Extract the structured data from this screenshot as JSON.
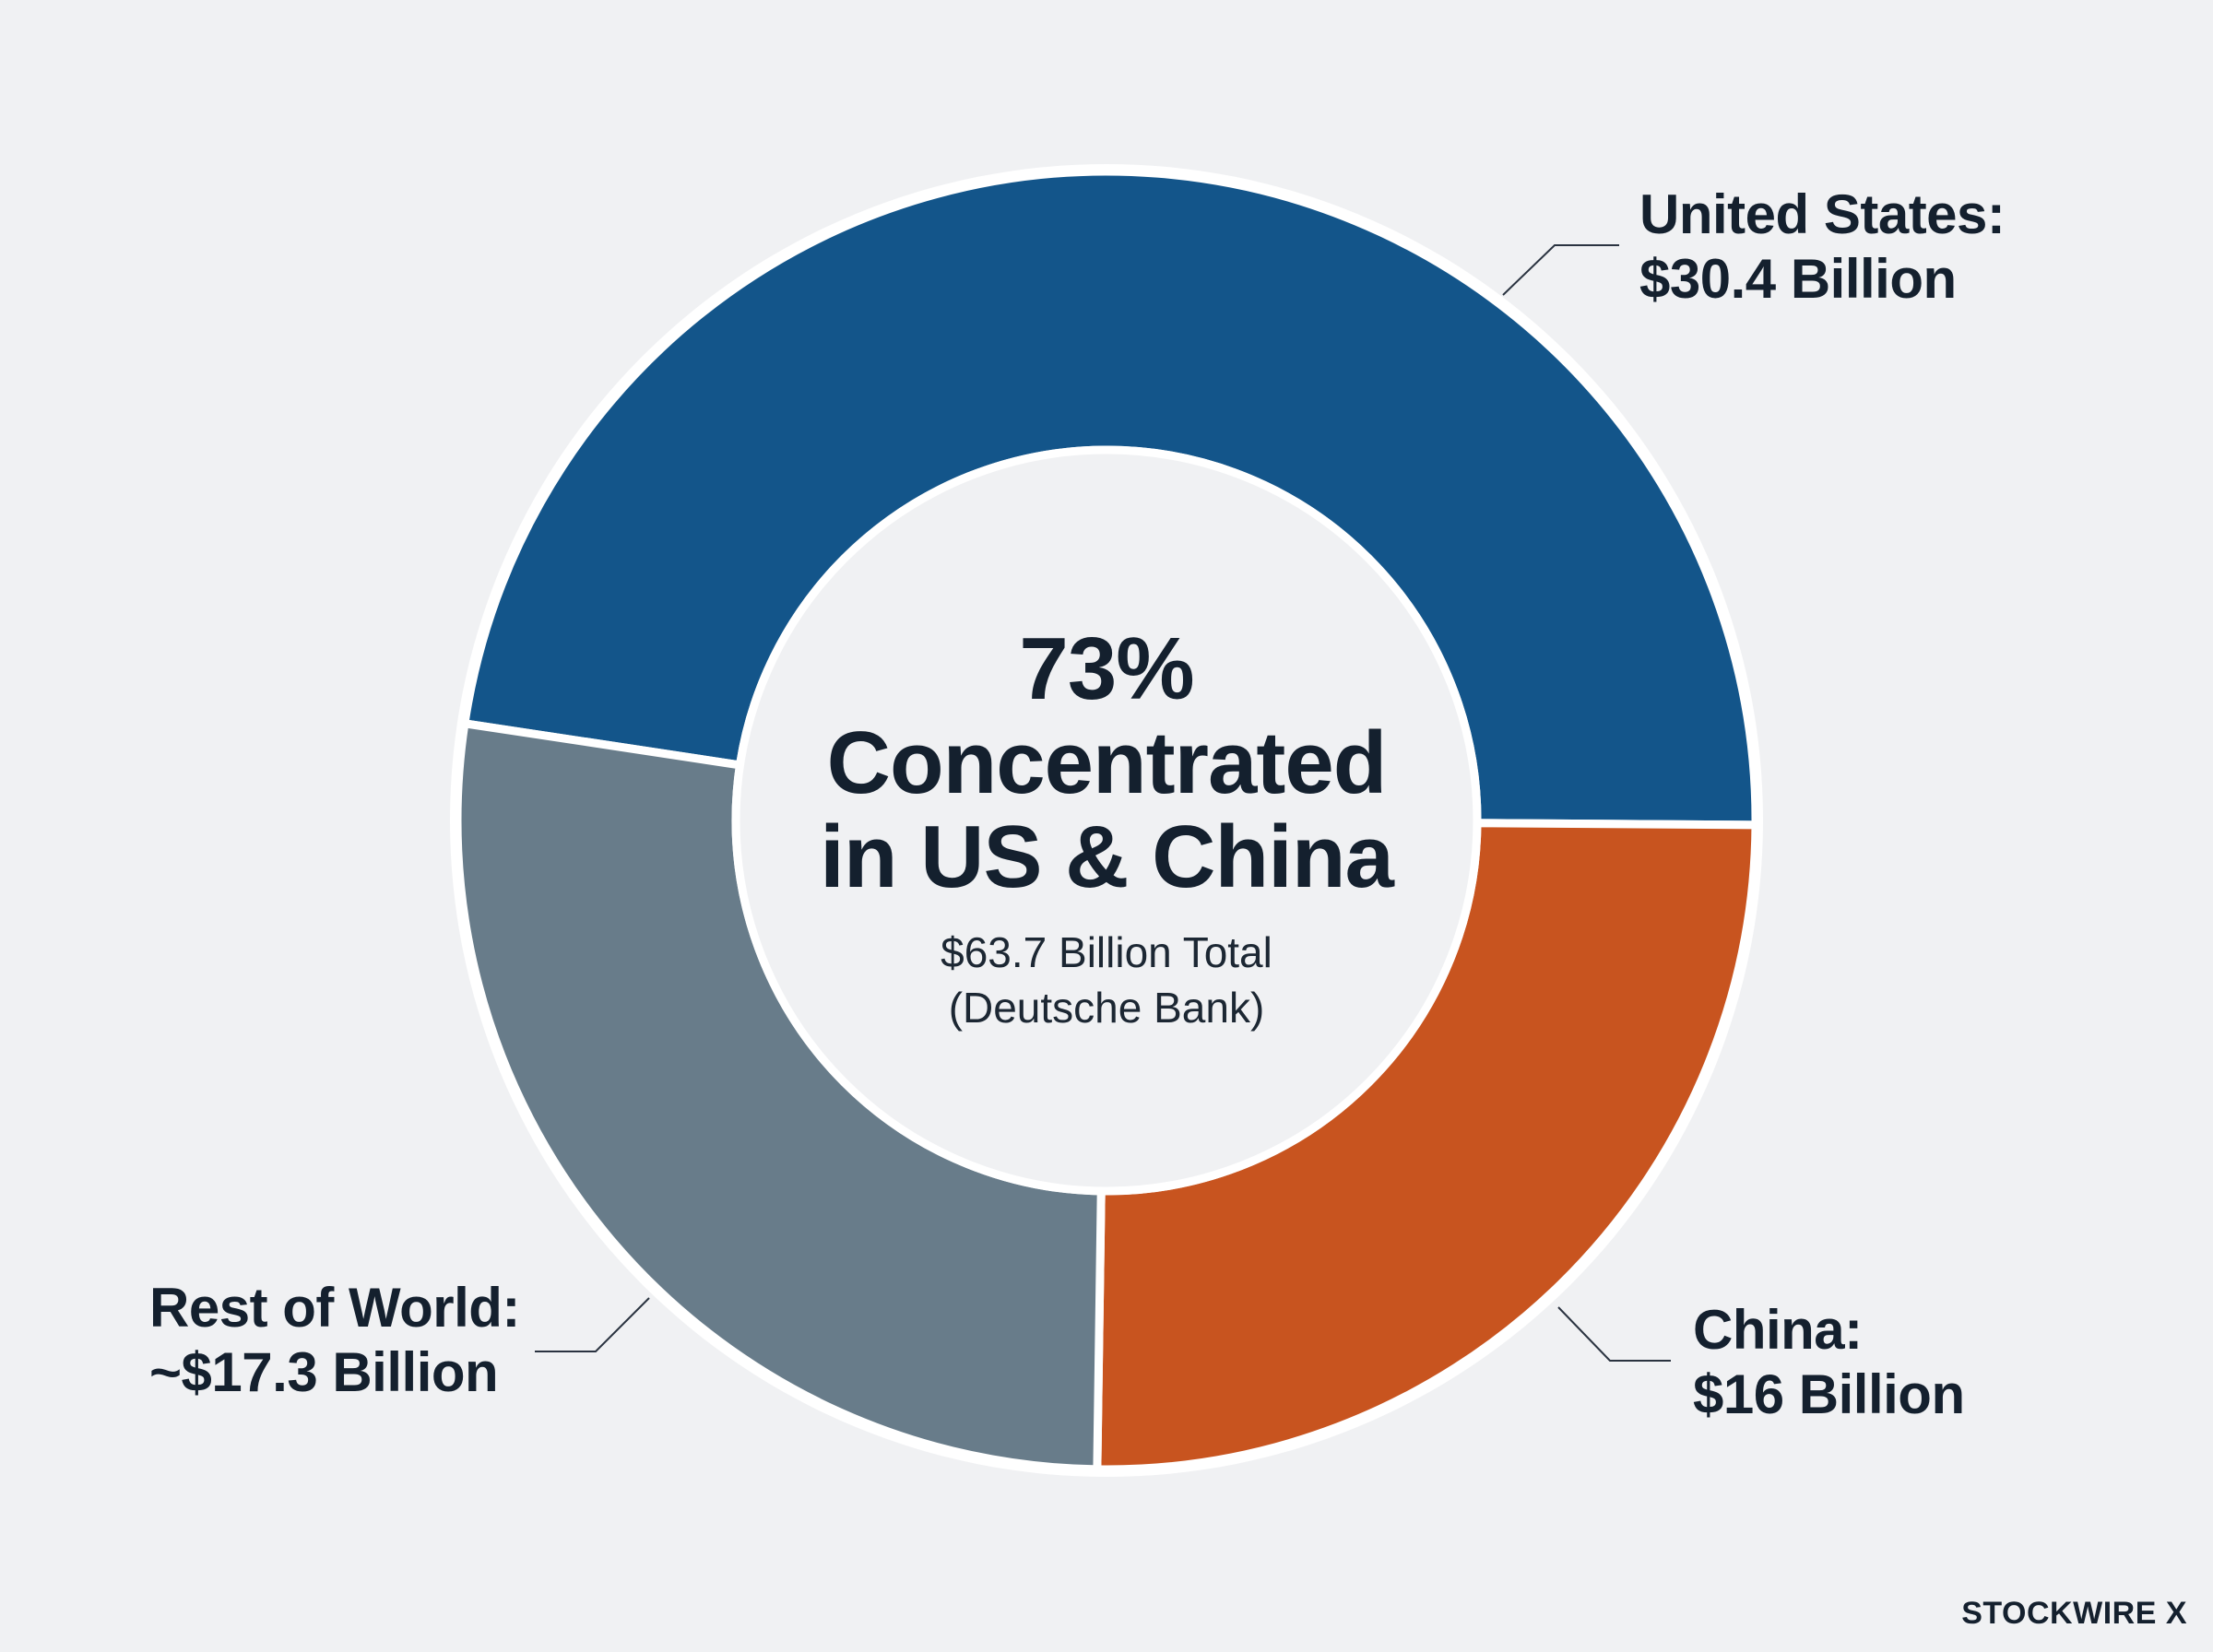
{
  "chart_data": {
    "type": "pie",
    "style": "donut",
    "center": {
      "headline_lines": [
        "73%",
        "Concentrated",
        "in US & China"
      ],
      "subtitle_lines": [
        "$63.7 Billion Total",
        "(Deutsche Bank)"
      ]
    },
    "slices": [
      {
        "key": "us",
        "value": 30.4,
        "label_lines": [
          "United States:",
          "$30.4 Billion"
        ],
        "color": "#13558a"
      },
      {
        "key": "china",
        "value": 16,
        "label_lines": [
          "China:",
          "$16 Billion"
        ],
        "color": "#c8541f"
      },
      {
        "key": "row",
        "value": 17.3,
        "label_lines": [
          "Rest of World:",
          "~$17.3 Billion"
        ],
        "color": "#687c8a"
      }
    ]
  },
  "colors": {
    "background": "#f0f1f3",
    "text": "#14202e",
    "separator": "#ffffff",
    "leader_line": "#2a3340"
  },
  "brand": {
    "text": "STOCKWIRE X"
  }
}
